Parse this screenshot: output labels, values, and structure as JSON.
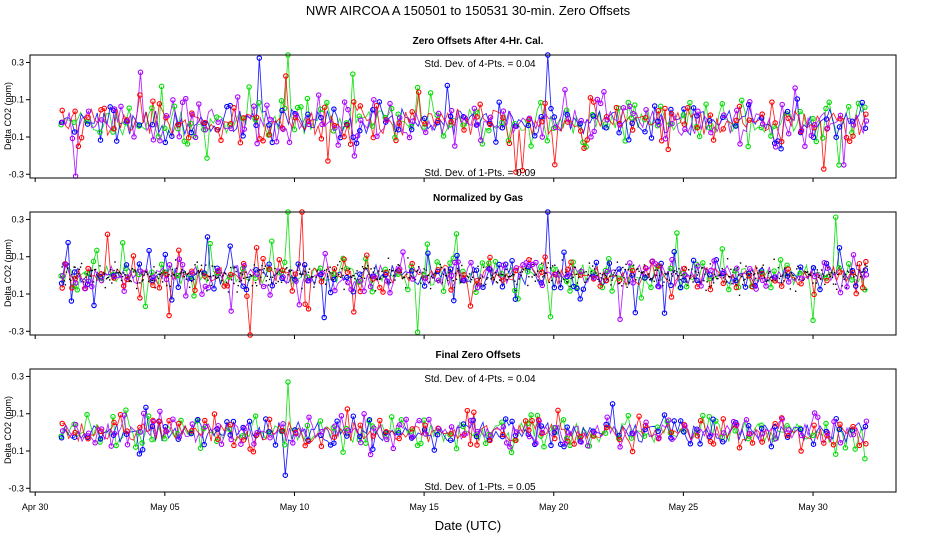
{
  "chart_data": {
    "type": "scatter",
    "title": "NWR   AIRCOA A   150501 to 150531   30-min. Zero Offsets",
    "xlabel": "Date (UTC)",
    "x_ticks": [
      "Apr 30",
      "May 05",
      "May 10",
      "May 15",
      "May 20",
      "May 25",
      "May 30"
    ],
    "x_tick_values": [
      0,
      5,
      10,
      15,
      20,
      25,
      30
    ],
    "x_range": [
      -0.2,
      33.2
    ],
    "data_x_range": [
      1.0,
      32.0
    ],
    "series_colors": {
      "gas_1": "#00dd00",
      "gas_2": "#0000ff",
      "gas_3": "#ff0000",
      "gas_4": "#aa00ff",
      "normalized": "#000000"
    },
    "panels": [
      {
        "title": "Zero Offsets After 4-Hr. Cal.",
        "ylabel": "Delta CO2 (ppm)",
        "ylim": [
          -0.32,
          0.34
        ],
        "y_ticks": [
          "-0.3",
          "-0.1",
          "0.1",
          "0.3"
        ],
        "y_tick_values": [
          -0.3,
          -0.1,
          0.1,
          0.3
        ],
        "annotation_top": "Std. Dev. of 4-Pts. =  0.04",
        "annotation_bottom": "Std. Dev. of 1-Pts. =  0.09",
        "mean": -0.02,
        "sd": 0.045,
        "scatter_sd": 0.09,
        "spikes": [
          {
            "day": 9.8,
            "value": 0.34
          },
          {
            "day": 19.8,
            "value": 0.34
          },
          {
            "day": 18.8,
            "value": -0.28
          },
          {
            "day": 1.6,
            "value": -0.31
          }
        ]
      },
      {
        "title": "Normalized by Gas",
        "ylabel": "Delta CO2 (ppm)",
        "ylim": [
          -0.32,
          0.34
        ],
        "y_ticks": [
          "-0.3",
          "-0.1",
          "0.1",
          "0.3"
        ],
        "y_tick_values": [
          -0.3,
          -0.1,
          0.1,
          0.3
        ],
        "mean": 0.0,
        "sd": 0.035,
        "scatter_sd": 0.09,
        "spikes": [
          {
            "day": 9.8,
            "value": 0.34
          },
          {
            "day": 19.8,
            "value": 0.34
          }
        ]
      },
      {
        "title": "Final Zero Offsets",
        "ylabel": "Delta CO2 (ppm)",
        "ylim": [
          -0.32,
          0.34
        ],
        "y_ticks": [
          "-0.3",
          "-0.1",
          "0.1",
          "0.3"
        ],
        "y_tick_values": [
          -0.3,
          -0.1,
          0.1,
          0.3
        ],
        "annotation_top": "Std. Dev. of 4-Pts. =  0.04",
        "annotation_bottom": "Std. Dev. of 1-Pts. =  0.05",
        "mean": 0.0,
        "sd": 0.035,
        "scatter_sd": 0.045,
        "spikes": [
          {
            "day": 9.8,
            "value": 0.27
          },
          {
            "day": 9.6,
            "value": -0.23
          }
        ]
      }
    ]
  }
}
